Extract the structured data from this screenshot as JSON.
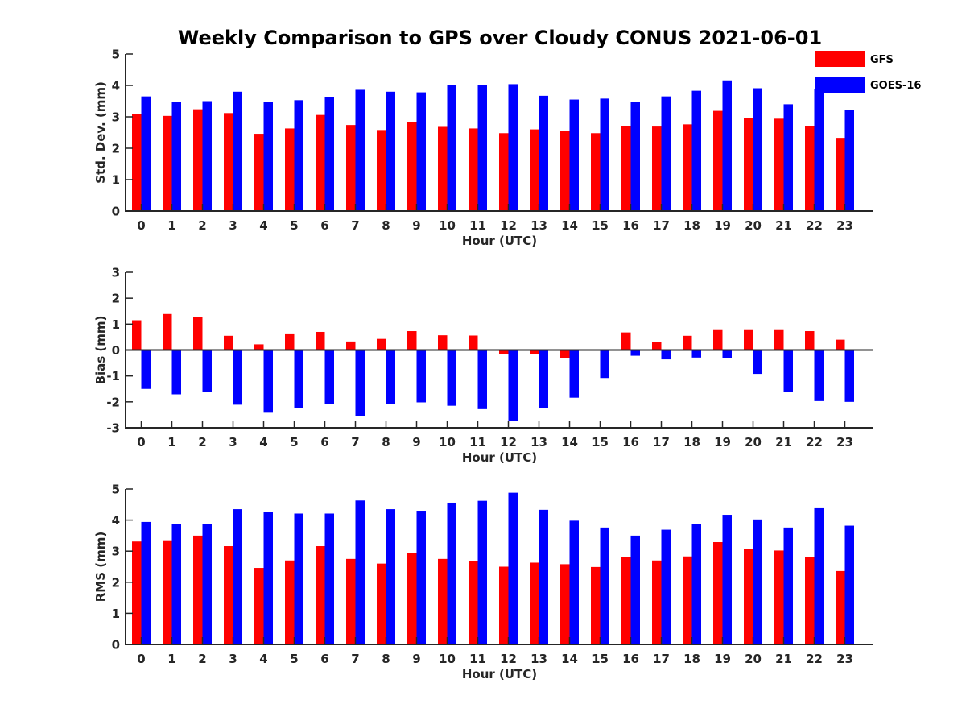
{
  "title": "Weekly Comparison to GPS over Cloudy CONUS 2021-06-01",
  "legend": {
    "placement": "top-right",
    "entries": [
      {
        "name": "GFS",
        "color": "#ff0000"
      },
      {
        "name": "GOES-16",
        "color": "#0000ff"
      }
    ]
  },
  "chart_data": [
    {
      "type": "bar",
      "xlabel": "Hour (UTC)",
      "ylabel": "Std. Dev. (mm)",
      "ylim": [
        0,
        5
      ],
      "yticks": [
        0,
        1,
        2,
        3,
        4,
        5
      ],
      "categories": [
        "0",
        "1",
        "2",
        "3",
        "4",
        "5",
        "6",
        "7",
        "8",
        "9",
        "10",
        "11",
        "12",
        "13",
        "14",
        "15",
        "16",
        "17",
        "18",
        "19",
        "20",
        "21",
        "22",
        "23"
      ],
      "series": [
        {
          "name": "GFS",
          "color": "#ff0000",
          "values": [
            3.08,
            3.03,
            3.24,
            3.12,
            2.46,
            2.63,
            3.06,
            2.74,
            2.58,
            2.84,
            2.68,
            2.63,
            2.48,
            2.6,
            2.56,
            2.48,
            2.71,
            2.69,
            2.76,
            3.19,
            2.97,
            2.94,
            2.71,
            2.33
          ]
        },
        {
          "name": "GOES-16",
          "color": "#0000ff",
          "values": [
            3.65,
            3.47,
            3.5,
            3.8,
            3.48,
            3.53,
            3.62,
            3.86,
            3.8,
            3.78,
            4.01,
            4.01,
            4.04,
            3.67,
            3.55,
            3.58,
            3.47,
            3.65,
            3.83,
            4.16,
            3.91,
            3.4,
            3.88,
            3.23
          ]
        }
      ]
    },
    {
      "type": "bar",
      "xlabel": "Hour (UTC)",
      "ylabel": "Bias (mm)",
      "ylim": [
        -3,
        3
      ],
      "yticks": [
        -3,
        -2,
        -1,
        0,
        1,
        2,
        3
      ],
      "categories": [
        "0",
        "1",
        "2",
        "3",
        "4",
        "5",
        "6",
        "7",
        "8",
        "9",
        "10",
        "11",
        "12",
        "13",
        "14",
        "15",
        "16",
        "17",
        "18",
        "19",
        "20",
        "21",
        "22",
        "23"
      ],
      "series": [
        {
          "name": "GFS",
          "color": "#ff0000",
          "values": [
            1.15,
            1.39,
            1.28,
            0.55,
            0.22,
            0.64,
            0.7,
            0.33,
            0.43,
            0.73,
            0.57,
            0.56,
            -0.17,
            -0.14,
            -0.32,
            0.02,
            0.68,
            0.3,
            0.55,
            0.77,
            0.77,
            0.77,
            0.73,
            0.4
          ]
        },
        {
          "name": "GOES-16",
          "color": "#0000ff",
          "values": [
            -1.5,
            -1.71,
            -1.62,
            -2.11,
            -2.42,
            -2.25,
            -2.08,
            -2.55,
            -2.08,
            -2.02,
            -2.15,
            -2.28,
            -2.72,
            -2.25,
            -1.84,
            -1.08,
            -0.22,
            -0.36,
            -0.29,
            -0.32,
            -0.92,
            -1.62,
            -1.97,
            -2.0
          ]
        }
      ]
    },
    {
      "type": "bar",
      "xlabel": "Hour (UTC)",
      "ylabel": "RMS (mm)",
      "ylim": [
        0,
        5
      ],
      "yticks": [
        0,
        1,
        2,
        3,
        4,
        5
      ],
      "categories": [
        "0",
        "1",
        "2",
        "3",
        "4",
        "5",
        "6",
        "7",
        "8",
        "9",
        "10",
        "11",
        "12",
        "13",
        "14",
        "15",
        "16",
        "17",
        "18",
        "19",
        "20",
        "21",
        "22",
        "23"
      ],
      "series": [
        {
          "name": "GFS",
          "color": "#ff0000",
          "values": [
            3.31,
            3.35,
            3.5,
            3.16,
            2.46,
            2.7,
            3.16,
            2.75,
            2.6,
            2.93,
            2.75,
            2.68,
            2.5,
            2.63,
            2.58,
            2.49,
            2.8,
            2.7,
            2.83,
            3.29,
            3.06,
            3.02,
            2.82,
            2.36
          ]
        },
        {
          "name": "GOES-16",
          "color": "#0000ff",
          "values": [
            3.94,
            3.86,
            3.86,
            4.35,
            4.25,
            4.21,
            4.21,
            4.63,
            4.35,
            4.3,
            4.56,
            4.62,
            4.88,
            4.33,
            3.98,
            3.76,
            3.5,
            3.69,
            3.86,
            4.17,
            4.02,
            3.76,
            4.38,
            3.82
          ]
        }
      ]
    }
  ]
}
